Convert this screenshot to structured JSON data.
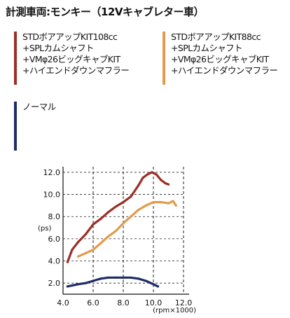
{
  "header": {
    "title": "計測車両:モンキー（12Vキャブレター車）"
  },
  "colors": {
    "red": "#9b2f27",
    "orange": "#e39a4b",
    "navy": "#1e2c66",
    "grid": "#222222"
  },
  "legend": [
    {
      "lines": [
        "STDボアアップKIT108cc",
        "+SPLカムシャフト",
        "+VMφ26ビッグキャブKIT",
        "+ハイエンドダウンマフラー"
      ]
    },
    {
      "lines": [
        "STDボアアップKIT88cc",
        "+SPLカムシャフト",
        "+VMφ26ビッグキャブKIT",
        "+ハイエンドダウンマフラー"
      ]
    },
    {
      "lines": [
        "ノーマル"
      ]
    }
  ],
  "chart_data": {
    "type": "line",
    "title": "",
    "xlabel": "(rpm×1000)",
    "ylabel": "(ps)",
    "xlim": [
      4.0,
      12.0
    ],
    "ylim": [
      1.0,
      12.5
    ],
    "x_ticks": [
      "4.0",
      "6.0",
      "8.0",
      "10.0",
      "12.0"
    ],
    "y_ticks": [
      "2.0",
      "4.0",
      "6.0",
      "8.0",
      "10.0",
      "12.0"
    ],
    "grid": "dashed vertical lines at each x tick; dashed horizontal lines at y ticks",
    "series": [
      {
        "color": "red",
        "x": [
          4.3,
          4.6,
          5.0,
          5.5,
          6.0,
          6.5,
          7.0,
          7.5,
          8.0,
          8.5,
          9.0,
          9.3,
          9.6,
          9.9,
          10.2,
          10.5,
          10.8,
          11.0
        ],
        "y": [
          3.9,
          5.0,
          5.7,
          6.4,
          7.3,
          7.8,
          8.4,
          8.9,
          9.3,
          9.8,
          10.8,
          11.5,
          11.8,
          12.0,
          11.8,
          11.3,
          11.0,
          10.9
        ]
      },
      {
        "color": "orange",
        "x": [
          5.0,
          5.5,
          6.0,
          6.5,
          7.0,
          7.5,
          8.0,
          8.5,
          9.0,
          9.5,
          10.0,
          10.5,
          11.0,
          11.3,
          11.5
        ],
        "y": [
          4.4,
          4.7,
          5.0,
          5.6,
          6.2,
          6.7,
          7.4,
          8.0,
          8.6,
          9.0,
          9.3,
          9.3,
          9.2,
          9.4,
          9.0
        ]
      },
      {
        "color": "navy",
        "x": [
          4.3,
          5.0,
          5.5,
          6.0,
          6.5,
          7.0,
          7.5,
          8.0,
          8.5,
          9.0,
          9.5,
          10.0,
          10.3
        ],
        "y": [
          1.7,
          1.9,
          2.0,
          2.2,
          2.4,
          2.5,
          2.5,
          2.5,
          2.5,
          2.4,
          2.2,
          1.9,
          1.7
        ]
      }
    ]
  }
}
